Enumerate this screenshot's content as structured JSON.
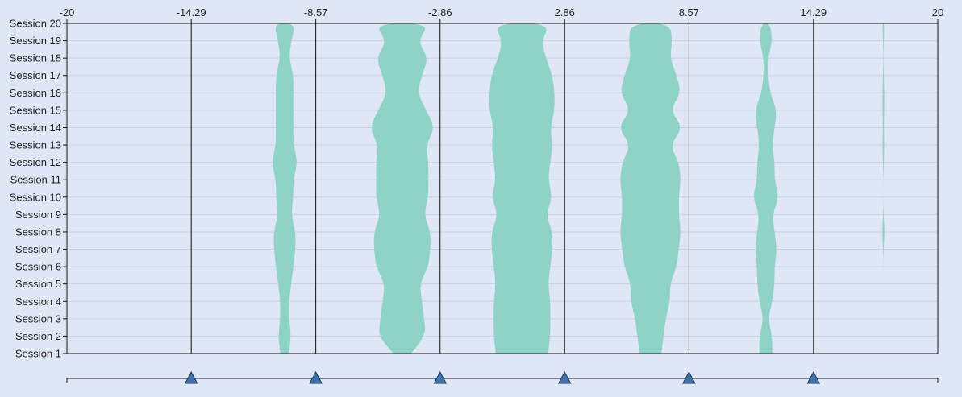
{
  "chart_data": {
    "type": "violin",
    "title": "",
    "xlabel": "",
    "ylabel": "",
    "xlim": [
      -20,
      20
    ],
    "x_ticks": [
      "-20",
      "-14.29",
      "-8.57",
      "-2.86",
      "2.86",
      "8.57",
      "14.29",
      "20"
    ],
    "x_tick_values": [
      -20,
      -14.29,
      -8.57,
      -2.86,
      2.86,
      8.57,
      14.29,
      20
    ],
    "divider_values": [
      -14.29,
      -8.57,
      -2.86,
      2.86,
      8.57,
      14.29
    ],
    "slider_handles": [
      -14.29,
      -8.57,
      -2.86,
      2.86,
      8.57,
      14.29
    ],
    "categories": [
      "Session 1",
      "Session 2",
      "Session 3",
      "Session 4",
      "Session 5",
      "Session 6",
      "Session 7",
      "Session 8",
      "Session 9",
      "Session 10",
      "Session 11",
      "Session 12",
      "Session 13",
      "Session 14",
      "Session 15",
      "Session 16",
      "Session 17",
      "Session 18",
      "Session 19",
      "Session 20"
    ],
    "fill_color": "#8fd3c6",
    "background_color": "#dfe6f5",
    "series": [
      {
        "center": -10.0,
        "half_widths": [
          0.2,
          0.3,
          0.2,
          0.2,
          0.3,
          0.4,
          0.5,
          0.5,
          0.3,
          0.4,
          0.4,
          0.6,
          0.4,
          0.4,
          0.4,
          0.4,
          0.4,
          0.2,
          0.3,
          0.5
        ]
      },
      {
        "center": -4.6,
        "half_widths": [
          0.4,
          1.1,
          1.0,
          0.9,
          0.8,
          1.2,
          1.3,
          1.3,
          1.0,
          1.2,
          1.2,
          1.2,
          1.1,
          1.5,
          1.1,
          0.7,
          0.9,
          1.2,
          0.7,
          1.3
        ]
      },
      {
        "center": 0.9,
        "half_widths": [
          1.2,
          1.3,
          1.3,
          1.3,
          1.2,
          1.3,
          1.4,
          1.4,
          1.1,
          1.4,
          1.2,
          1.3,
          1.4,
          1.3,
          1.5,
          1.5,
          1.4,
          1.1,
          0.9,
          1.3
        ]
      },
      {
        "center": 6.8,
        "half_widths": [
          0.5,
          0.6,
          0.7,
          0.9,
          0.9,
          1.2,
          1.3,
          1.4,
          1.3,
          1.3,
          1.4,
          1.3,
          0.9,
          1.5,
          0.9,
          1.4,
          1.2,
          0.9,
          1.0,
          0.9
        ]
      },
      {
        "center": 12.1,
        "half_widths": [
          0.3,
          0.3,
          0.1,
          0.3,
          0.4,
          0.4,
          0.5,
          0.4,
          0.3,
          0.6,
          0.4,
          0.4,
          0.3,
          0.4,
          0.5,
          0.2,
          0.1,
          0.1,
          0.3,
          0.2
        ]
      },
      {
        "center": 17.5,
        "half_widths": [
          0,
          0,
          0,
          0,
          0,
          0,
          0.01,
          0.06,
          0.01,
          0,
          0,
          0.02,
          0.04,
          0.02,
          0.04,
          0.04,
          0.02,
          0,
          0.02,
          0.04
        ]
      }
    ]
  }
}
